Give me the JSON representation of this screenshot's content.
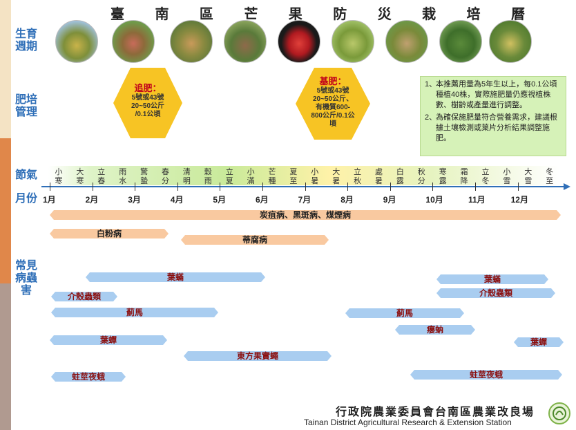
{
  "title_chars": [
    "臺",
    "南",
    "區",
    "芒",
    "果",
    "防",
    "災",
    "栽",
    "培",
    "曆"
  ],
  "sections": {
    "growth": "生育\n週期",
    "fertilizer": "肥培\n管理",
    "solar_terms": "節氣",
    "month": "月份",
    "pests": "常見\n病蟲\n害"
  },
  "fertilizer": {
    "top": {
      "heading": "追肥：",
      "lines": [
        "5號或43號",
        "20~50公斤",
        "/0.1公頃"
      ]
    },
    "base": {
      "heading": "基肥：",
      "lines": [
        "5號或43號",
        "20~50公斤、",
        "有機質600-",
        "800公斤/0.1公",
        "頃"
      ]
    }
  },
  "notes": [
    {
      "num": "1、",
      "text": "本推薦用量為5年生以上，每0.1公頃種植40株，實際施肥量仍應視植株數、樹齡或產量進行調整。"
    },
    {
      "num": "2、",
      "text": "為確保施肥量符合營養需求，建議根據土壤檢測或葉片分析結果調整施肥。"
    }
  ],
  "solar_terms": [
    "小寒",
    "大寒",
    "立春",
    "雨水",
    "驚蟄",
    "春分",
    "清明",
    "穀雨",
    "立夏",
    "小滿",
    "芒種",
    "夏至",
    "小暑",
    "大暑",
    "立秋",
    "處暑",
    "白露",
    "秋分",
    "寒露",
    "霜降",
    "立冬",
    "小雪",
    "大雪",
    "冬至"
  ],
  "months": [
    "1月",
    "2月",
    "3月",
    "4月",
    "5月",
    "6月",
    "7月",
    "8月",
    "9月",
    "10月",
    "11月",
    "12月"
  ],
  "diseases": [
    {
      "label": "炭疽病、黑斑病、煤煙病"
    },
    {
      "label": "白粉病"
    },
    {
      "label": "蒂腐病"
    }
  ],
  "pests": [
    {
      "label": "葉蟎"
    },
    {
      "label": "葉蟎"
    },
    {
      "label": "介殼蟲類"
    },
    {
      "label": "介殼蟲類"
    },
    {
      "label": "薊馬"
    },
    {
      "label": "薊馬"
    },
    {
      "label": "癭蚋"
    },
    {
      "label": "葉蟬"
    },
    {
      "label": "葉蟬"
    },
    {
      "label": "東方果實蠅"
    },
    {
      "label": "蛀莖夜蛾"
    },
    {
      "label": "蛀莖夜蛾"
    }
  ],
  "footer": {
    "cn": "行政院農業委員會台南區農業改良場",
    "en": "Tainan District Agricultural Research & Extension Station"
  },
  "colors": {
    "strip_top": "#f4e3c4",
    "strip_mid": "#e0874a",
    "strip_bottom": "#b09a90",
    "label": "#2f6fb8",
    "hex": "#f7c424",
    "notes_bg": "#d6f2b8",
    "disease_bar": "#f9c9a0",
    "pest_bar": "#a9cdf0",
    "axis": "#2f6fb8"
  }
}
